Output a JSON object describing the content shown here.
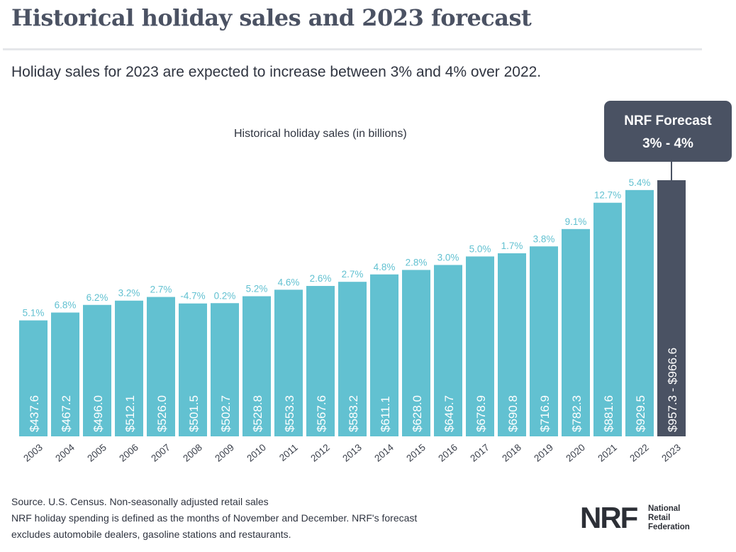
{
  "header": {
    "title": "Historical holiday sales and 2023 forecast",
    "subtitle": "Holiday sales for 2023 are expected to increase between 3% and 4% over 2022."
  },
  "callout": {
    "line1": "NRF Forecast",
    "line2": "3% - 4%"
  },
  "footer": {
    "line1": "Source. U.S. Census. Non-seasonally adjusted retail sales",
    "line2": "NRF holiday spending is defined as the months of November and December. NRF's forecast",
    "line3": "excludes automobile dealers, gasoline stations and restaurants."
  },
  "logo": {
    "mark": "NRF",
    "line1": "National",
    "line2": "Retail",
    "line3": "Federation"
  },
  "colors": {
    "bar": "#62c1d1",
    "forecast_bar": "#4a5263",
    "growth_label": "#62c1d1",
    "bar_label": "#ffffff"
  },
  "chart_data": {
    "type": "bar",
    "title": "Historical holiday sales (in billions)",
    "xlabel": "",
    "ylabel": "",
    "categories": [
      "2003",
      "2004",
      "2005",
      "2006",
      "2007",
      "2008",
      "2009",
      "2010",
      "2011",
      "2012",
      "2013",
      "2014",
      "2015",
      "2016",
      "2017",
      "2018",
      "2019",
      "2020",
      "2021",
      "2022",
      "2023"
    ],
    "values": [
      437.6,
      467.2,
      496.0,
      512.1,
      526.0,
      501.5,
      502.7,
      528.8,
      553.3,
      567.6,
      583.2,
      611.1,
      628.0,
      646.7,
      678.9,
      690.8,
      716.9,
      782.3,
      881.6,
      929.5,
      966.6
    ],
    "value_labels": [
      "$437.6",
      "$467.2",
      "$496.0",
      "$512.1",
      "$526.0",
      "$501.5",
      "$502.7",
      "$528.8",
      "$553.3",
      "$567.6",
      "$583.2",
      "$611.1",
      "$628.0",
      "$646.7",
      "$678.9",
      "$690.8",
      "$716.9",
      "$782.3",
      "$881.6",
      "$929.5",
      "$957.3 - $966.6"
    ],
    "growth_labels": [
      "5.1%",
      "6.8%",
      "6.2%",
      "3.2%",
      "2.7%",
      "-4.7%",
      "0.2%",
      "5.2%",
      "4.6%",
      "2.6%",
      "2.7%",
      "4.8%",
      "2.8%",
      "3.0%",
      "5.0%",
      "1.7%",
      "3.8%",
      "9.1%",
      "12.7%",
      "5.4%",
      ""
    ],
    "forecast_index": 20,
    "forecast_range": [
      957.3,
      966.6
    ],
    "ylim": [
      0,
      966.6
    ],
    "grid": false,
    "legend": "none"
  }
}
